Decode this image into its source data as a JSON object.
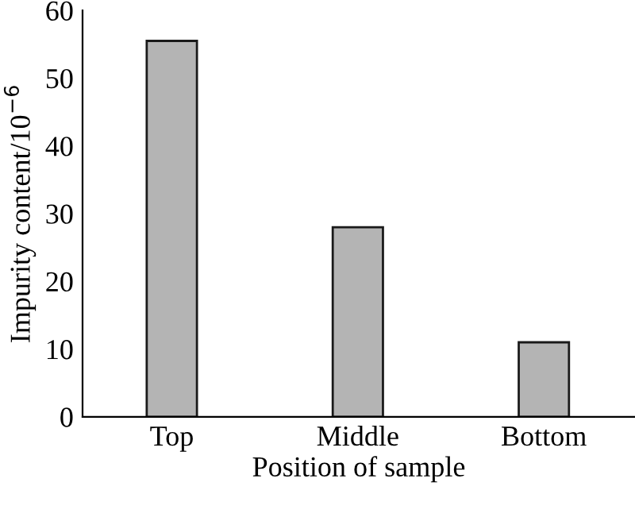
{
  "chart_data": {
    "type": "bar",
    "xlabel": "Position of sample",
    "ylabel": "Impurity content/10$^{−6}$",
    "categories": [
      "Top",
      "Middle",
      "Bottom"
    ],
    "values": [
      55.5,
      28,
      11
    ],
    "color": "#b4b4b4",
    "ylim": [
      0,
      60
    ],
    "yticks": [
      0,
      10,
      20,
      30,
      40,
      50,
      60
    ],
    "grid": false
  }
}
